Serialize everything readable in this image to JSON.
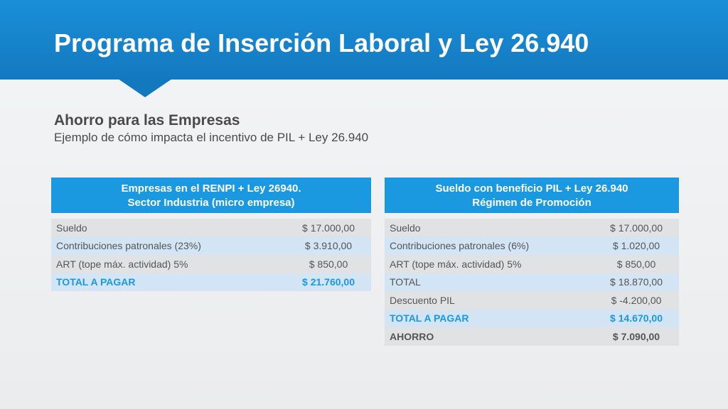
{
  "title": "Programa de Inserción Laboral y Ley 26.940",
  "section": {
    "heading": "Ahorro para las Empresas",
    "subtitle": "Ejemplo de cómo impacta el incentivo de PIL + Ley 26.940"
  },
  "left_table": {
    "header_line1": "Empresas en el RENPI + Ley 26940.",
    "header_line2": "Sector Industria (micro empresa)",
    "rows": [
      {
        "label": "Sueldo",
        "value": "$ 17.000,00"
      },
      {
        "label": "Contribuciones patronales (23%)",
        "value": "$ 3.910,00"
      },
      {
        "label": "ART (tope máx. actividad) 5%",
        "value": "$ 850,00"
      },
      {
        "label": "TOTAL A PAGAR",
        "value": "$ 21.760,00"
      }
    ]
  },
  "right_table": {
    "header_line1": "Sueldo con beneficio PIL + Ley 26.940",
    "header_line2": "Régimen de Promoción",
    "rows": [
      {
        "label": "Sueldo",
        "value": "$ 17.000,00"
      },
      {
        "label": "Contribuciones patronales (6%)",
        "value": "$ 1.020,00"
      },
      {
        "label": "ART (tope máx. actividad) 5%",
        "value": "$ 850,00"
      },
      {
        "label": "TOTAL",
        "value": "$ 18.870,00"
      },
      {
        "label": "Descuento PIL",
        "value": "$ -4.200,00"
      },
      {
        "label": "TOTAL A PAGAR",
        "value": "$ 14.670,00"
      },
      {
        "label": "AHORRO",
        "value": "$ 7.090,00"
      }
    ]
  },
  "colors": {
    "header_blue": "#1a8fd8",
    "table_header_blue": "#1a98e0",
    "row_grey": "#e1e2e4",
    "row_light_blue": "#d3e4f5"
  }
}
